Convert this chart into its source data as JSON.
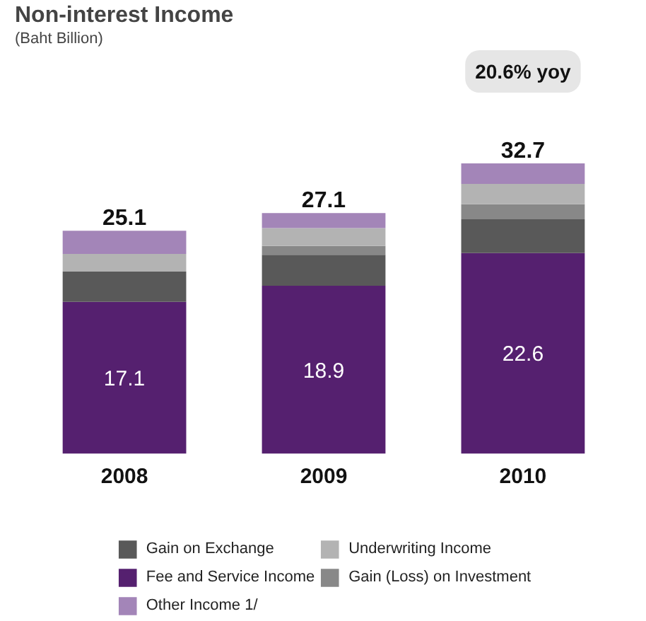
{
  "chart_data": {
    "type": "bar",
    "title": "Non-interest Income",
    "subtitle": "(Baht Billion)",
    "categories": [
      "2008",
      "2009",
      "2010"
    ],
    "stacked": true,
    "legend": "bottom",
    "series": [
      {
        "name": "Fee and Service Income",
        "color": "#55206f",
        "values": [
          17.1,
          18.9,
          22.6
        ],
        "value_labels": [
          "17.1",
          "18.9",
          "22.6"
        ]
      },
      {
        "name": "Gain on Exchange",
        "color": "#595959",
        "values": [
          3.4,
          3.5,
          3.8
        ]
      },
      {
        "name": "Gain (Loss) on Investment",
        "color": "#888888",
        "values": [
          0,
          1.0,
          1.7
        ]
      },
      {
        "name": "Underwriting Income",
        "color": "#b3b3b3",
        "values": [
          2.0,
          2.0,
          2.3
        ]
      },
      {
        "name": "Other Income 1/",
        "color": "#a385b8",
        "values": [
          2.6,
          1.7,
          2.3
        ]
      }
    ],
    "totals": [
      "25.1",
      "27.1",
      "32.7"
    ],
    "annotations": [
      "20.6% yoy"
    ]
  }
}
